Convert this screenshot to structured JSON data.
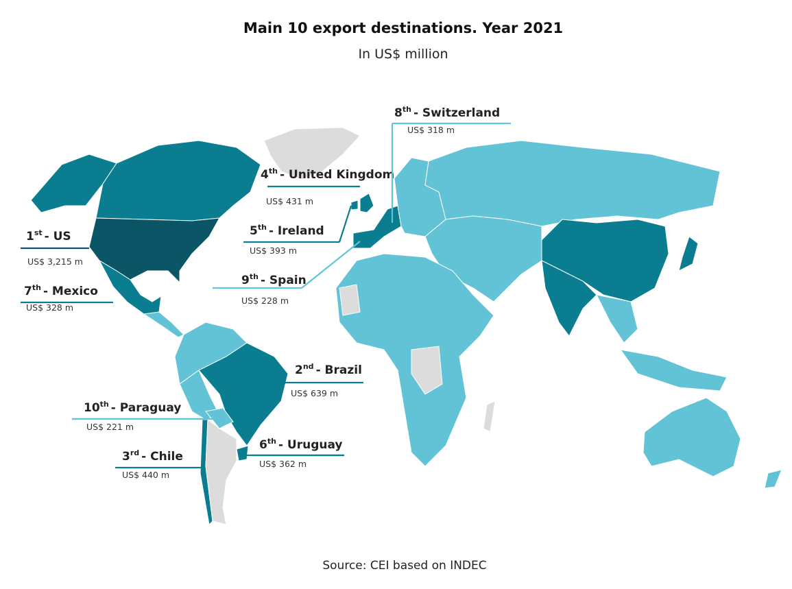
{
  "header": {
    "title": "Main 10 export destinations. Year 2021",
    "subtitle": "In US$ million"
  },
  "destinations": [
    {
      "rank": "1",
      "suffix": "st",
      "name": "- US",
      "value_label": "US$ 3,215 m"
    },
    {
      "rank": "2",
      "suffix": "nd",
      "name": "- Brazil",
      "value_label": "US$ 639 m"
    },
    {
      "rank": "3",
      "suffix": "rd",
      "name": "- Chile",
      "value_label": "US$ 440 m"
    },
    {
      "rank": "4",
      "suffix": "th",
      "name": "- United Kingdom",
      "value_label": "US$ 431 m"
    },
    {
      "rank": "5",
      "suffix": "th",
      "name": "- Ireland",
      "value_label": "US$ 393 m"
    },
    {
      "rank": "6",
      "suffix": "th",
      "name": "- Uruguay",
      "value_label": "US$ 362 m"
    },
    {
      "rank": "7",
      "suffix": "th",
      "name": "- Mexico",
      "value_label": "US$ 328 m"
    },
    {
      "rank": "8",
      "suffix": "th",
      "name": "- Switzerland",
      "value_label": "US$ 318 m"
    },
    {
      "rank": "9",
      "suffix": "th",
      "name": "- Spain",
      "value_label": "US$ 228 m"
    },
    {
      "rank": "10",
      "suffix": "th",
      "name": "- Paraguay",
      "value_label": "US$ 221 m"
    }
  ],
  "footer": {
    "source": "Source: CEI based on INDEC"
  }
}
